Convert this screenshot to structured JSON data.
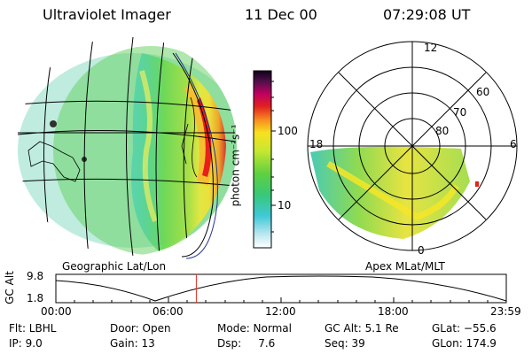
{
  "header": {
    "instrument": "Ultraviolet Imager",
    "date": "11 Dec 00",
    "time": "07:29:08 UT"
  },
  "left_panel": {
    "caption": "Geographic Lat/Lon"
  },
  "right_panel": {
    "caption": "Apex MLat/MLT",
    "mlt_labels": [
      "12",
      "18",
      "6",
      "0"
    ],
    "mlat_labels": [
      "60",
      "70",
      "80"
    ]
  },
  "colorbar": {
    "label": "photon cm⁻²s⁻¹",
    "ticks": [
      "100",
      "10"
    ]
  },
  "altitude_plot": {
    "ylabel": "GC Alt",
    "y_ticks": [
      "9.8",
      "1.8"
    ],
    "x_ticks": [
      "00:00",
      "06:00",
      "12:00",
      "18:00",
      "23:59"
    ],
    "current_time_hours": 7.485
  },
  "info": {
    "flt": "Flt: LBHL",
    "ip": "IP:  9.0",
    "door": "Door: Open",
    "gain": "Gain: 13",
    "mode": "Mode: Normal",
    "dsp": "Dsp:     7.6",
    "gcalt": "GC Alt: 5.1 Re",
    "seq": "Seq: 39",
    "glat": "GLat: −55.6",
    "glon": "GLon: 174.9"
  },
  "colors": {
    "aurora_red": "#e8201a",
    "aurora_yellow": "#f5e628",
    "background_green": "#7ed957",
    "marker_red": "#e03020"
  }
}
